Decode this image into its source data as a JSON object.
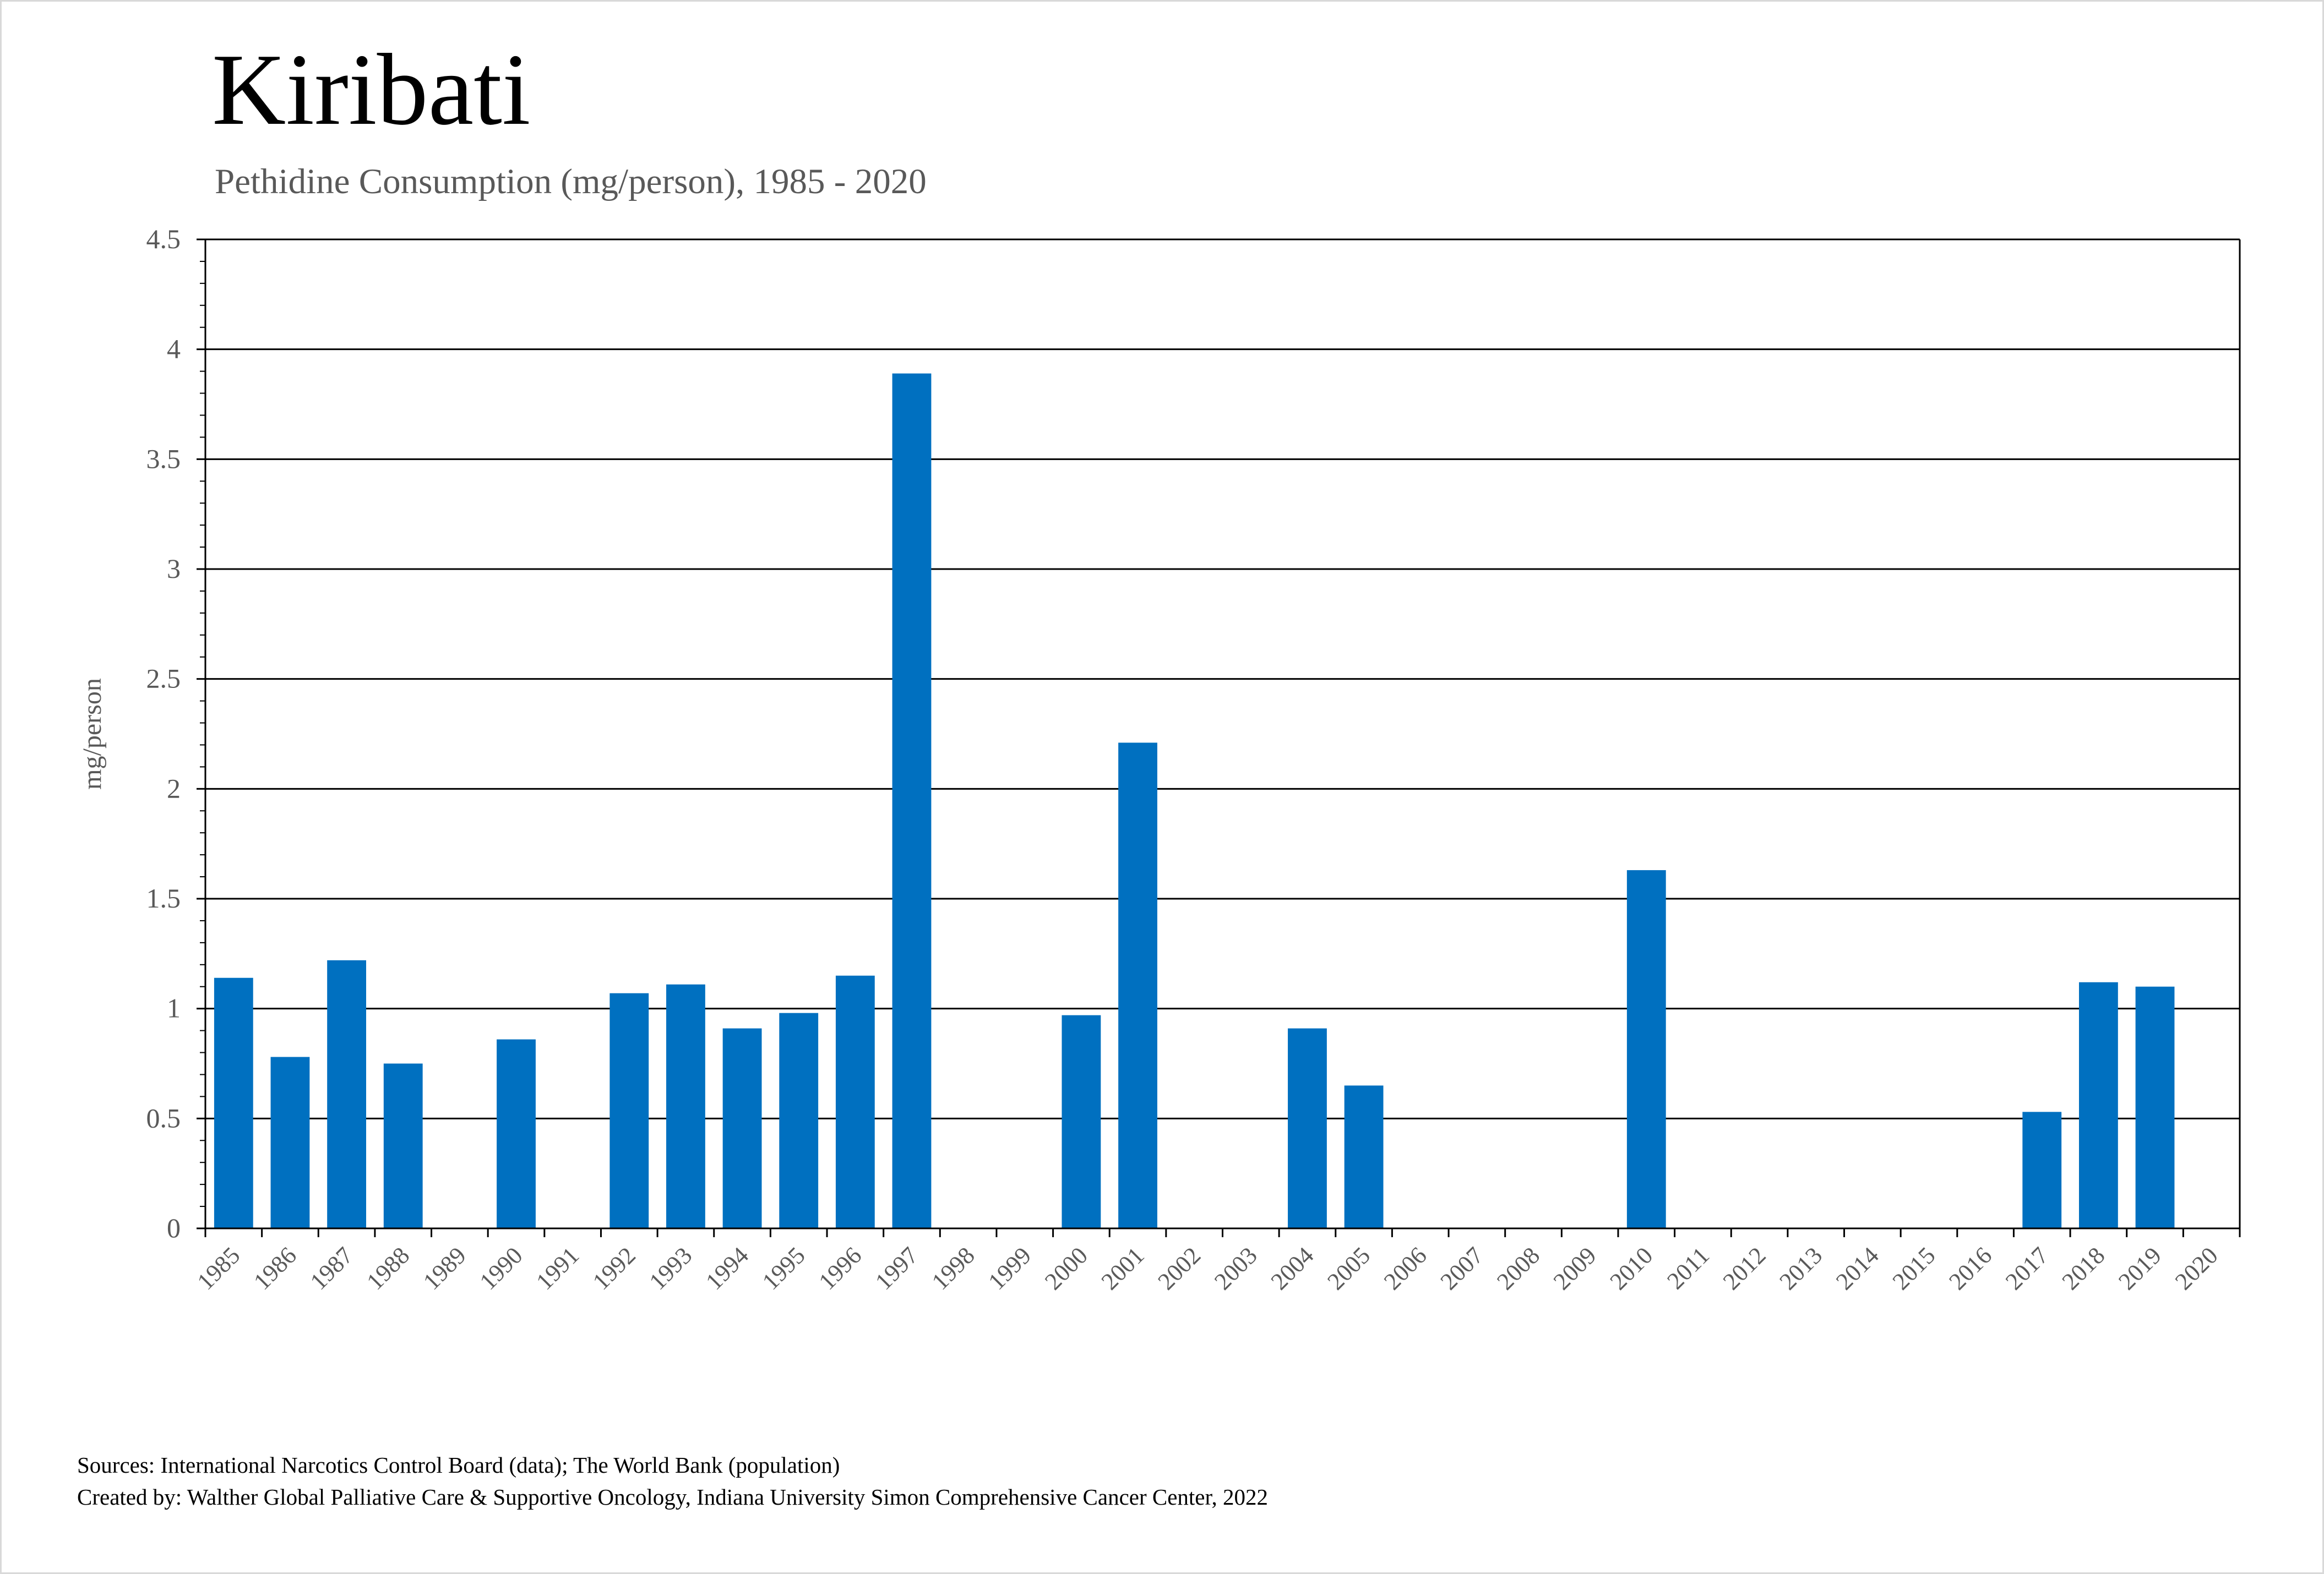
{
  "page": {
    "title": "Kiribati",
    "subtitle": "Pethidine Consumption (mg/person), 1985 - 2020",
    "footer_sources": "Sources: International Narcotics Control Board (data); The World Bank (population)",
    "footer_created": "Created by: Walther Global Palliative Care & Supportive Oncology, Indiana University Simon Comprehensive Cancer Center, 2022"
  },
  "colors": {
    "bar": "#0070c0",
    "grid": "#000000",
    "axis_text": "#595959",
    "frame": "#d9d9d9"
  },
  "chart_data": {
    "type": "bar",
    "title": "Kiribati",
    "subtitle": "Pethidine Consumption (mg/person), 1985 - 2020",
    "xlabel": "",
    "ylabel": "mg/person",
    "ylim": [
      0,
      4.5
    ],
    "yticks": [
      0,
      0.5,
      1,
      1.5,
      2,
      2.5,
      3,
      3.5,
      4,
      4.5
    ],
    "ytick_labels": [
      "0",
      "0.5",
      "1",
      "1.5",
      "2",
      "2.5",
      "3",
      "3.5",
      "4",
      "4.5"
    ],
    "grid": true,
    "legend": "none",
    "categories": [
      "1985",
      "1986",
      "1987",
      "1988",
      "1989",
      "1990",
      "1991",
      "1992",
      "1993",
      "1994",
      "1995",
      "1996",
      "1997",
      "1998",
      "1999",
      "2000",
      "2001",
      "2002",
      "2003",
      "2004",
      "2005",
      "2006",
      "2007",
      "2008",
      "2009",
      "2010",
      "2011",
      "2012",
      "2013",
      "2014",
      "2015",
      "2016",
      "2017",
      "2018",
      "2019",
      "2020"
    ],
    "values": [
      1.14,
      0.78,
      1.22,
      0.75,
      0,
      0.86,
      0,
      1.07,
      1.11,
      0.91,
      0.98,
      1.15,
      3.89,
      0,
      0,
      0.97,
      2.21,
      0,
      0,
      0.91,
      0.65,
      0,
      0,
      0,
      0,
      1.63,
      0,
      0,
      0,
      0,
      0,
      0,
      0.53,
      1.12,
      1.1,
      0
    ]
  }
}
